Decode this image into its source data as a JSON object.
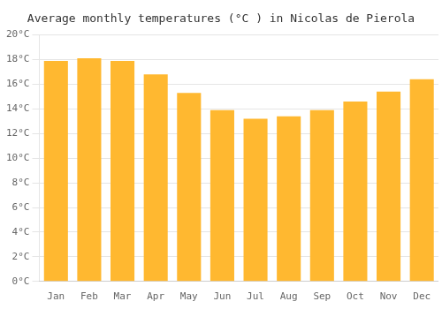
{
  "chart_data": {
    "type": "bar",
    "title": "Average monthly temperatures (°C ) in Nicolas de Pierola",
    "categories": [
      "Jan",
      "Feb",
      "Mar",
      "Apr",
      "May",
      "Jun",
      "Jul",
      "Aug",
      "Sep",
      "Oct",
      "Nov",
      "Dec"
    ],
    "values": [
      17.9,
      18.1,
      17.9,
      16.8,
      15.3,
      13.9,
      13.2,
      13.4,
      13.9,
      14.6,
      15.4,
      16.4
    ],
    "color": "#FFB830",
    "ylim": [
      0,
      20
    ],
    "yticks": [
      {
        "value": 0,
        "label": "0°C"
      },
      {
        "value": 2,
        "label": "2°C"
      },
      {
        "value": 4,
        "label": "4°C"
      },
      {
        "value": 6,
        "label": "6°C"
      },
      {
        "value": 8,
        "label": "8°C"
      },
      {
        "value": 10,
        "label": "10°C"
      },
      {
        "value": 12,
        "label": "12°C"
      },
      {
        "value": 14,
        "label": "14°C"
      },
      {
        "value": 16,
        "label": "16°C"
      },
      {
        "value": 18,
        "label": "18°C"
      },
      {
        "value": 20,
        "label": "20°C"
      }
    ],
    "grid": true
  }
}
